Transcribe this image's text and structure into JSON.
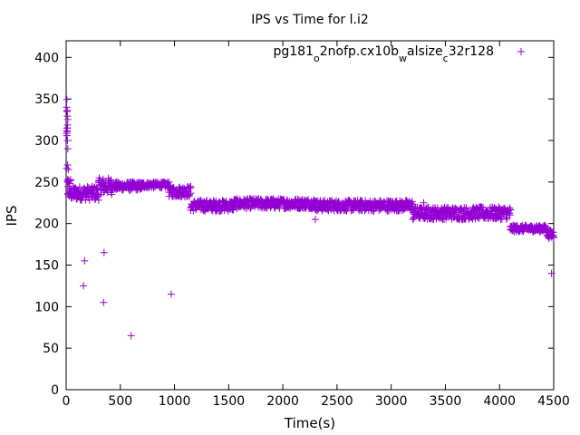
{
  "chart_data": {
    "type": "scatter",
    "title": "IPS vs Time for l.i2",
    "xlabel": "Time(s)",
    "ylabel": "IPS",
    "xlim": [
      0,
      4500
    ],
    "ylim": [
      0,
      420
    ],
    "xticks": [
      0,
      500,
      1000,
      1500,
      2000,
      2500,
      3000,
      3500,
      4000,
      4500
    ],
    "yticks": [
      0,
      50,
      100,
      150,
      200,
      250,
      300,
      350,
      400
    ],
    "grid": false,
    "legend_position": "top-right",
    "marker": "+",
    "series_color": "#9400d3",
    "legend": {
      "parts": [
        {
          "text": "pg181",
          "sub": false
        },
        {
          "text": "o",
          "sub": true
        },
        {
          "text": "2nofp.cx10b",
          "sub": false
        },
        {
          "text": "w",
          "sub": true
        },
        {
          "text": "alsize",
          "sub": false
        },
        {
          "text": "c",
          "sub": true
        },
        {
          "text": "32r128",
          "sub": false
        }
      ]
    },
    "series": [
      {
        "name": "pg181_o2nofp.cx10b_walsize_c32r128",
        "segments": [
          {
            "x": [
              5,
              15
            ],
            "y": [
              230,
              350
            ]
          },
          {
            "x": [
              15,
              40
            ],
            "y": [
              230,
              255
            ]
          },
          {
            "x": [
              40,
              300
            ],
            "y": [
              228,
              245
            ]
          },
          {
            "x": [
              300,
              420
            ],
            "y": [
              235,
              255
            ]
          },
          {
            "x": [
              420,
              700
            ],
            "y": [
              240,
              250
            ]
          },
          {
            "x": [
              700,
              950
            ],
            "y": [
              243,
              250
            ]
          },
          {
            "x": [
              950,
              1150
            ],
            "y": [
              232,
              245
            ]
          },
          {
            "x": [
              1150,
              1550
            ],
            "y": [
              215,
              228
            ]
          },
          {
            "x": [
              1550,
              2300
            ],
            "y": [
              218,
              230
            ]
          },
          {
            "x": [
              2300,
              3200
            ],
            "y": [
              215,
              228
            ]
          },
          {
            "x": [
              3200,
              4100
            ],
            "y": [
              205,
              220
            ]
          },
          {
            "x": [
              4100,
              4440
            ],
            "y": [
              190,
              198
            ]
          },
          {
            "x": [
              4440,
              4500
            ],
            "y": [
              182,
              192
            ]
          }
        ],
        "points": [
          {
            "x": 5,
            "y": 340
          },
          {
            "x": 8,
            "y": 335
          },
          {
            "x": 10,
            "y": 315
          },
          {
            "x": 12,
            "y": 300
          },
          {
            "x": 15,
            "y": 290
          },
          {
            "x": 20,
            "y": 265
          },
          {
            "x": 160,
            "y": 125
          },
          {
            "x": 170,
            "y": 155
          },
          {
            "x": 345,
            "y": 105
          },
          {
            "x": 350,
            "y": 165
          },
          {
            "x": 600,
            "y": 65
          },
          {
            "x": 970,
            "y": 115
          },
          {
            "x": 2300,
            "y": 205
          },
          {
            "x": 3200,
            "y": 205
          },
          {
            "x": 3300,
            "y": 225
          },
          {
            "x": 4480,
            "y": 140
          }
        ]
      }
    ]
  }
}
